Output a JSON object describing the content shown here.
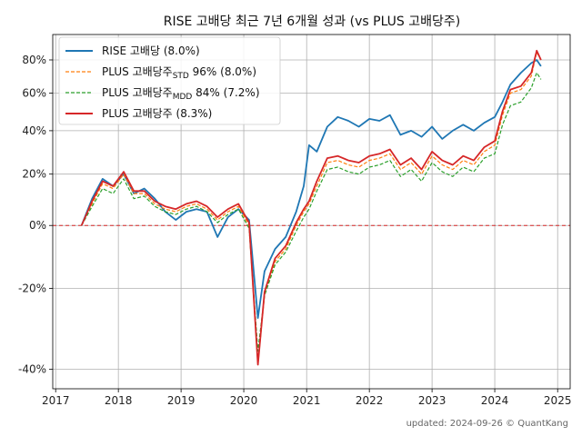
{
  "chart_data": {
    "type": "line",
    "title": "RISE 고배당 최근 7년 6개월 성과 (vs PLUS 고배당주)",
    "xlabel": "",
    "ylabel": "",
    "x_ticks": [
      "2017",
      "2018",
      "2019",
      "2020",
      "2021",
      "2022",
      "2023",
      "2024",
      "2025"
    ],
    "y_ticks": [
      "80%",
      "60%",
      "40%",
      "20%",
      "0%",
      "-20%",
      "-40%"
    ],
    "y_scale": "log(1+r)",
    "ylim": [
      -0.44,
      0.97
    ],
    "xlim": [
      "2016-12-15",
      "2025-03-15"
    ],
    "grid": true,
    "legend_position": "top-left",
    "reference_line": {
      "y": 0,
      "color": "#d62728",
      "style": "dashed"
    },
    "series": [
      {
        "name": "RISE 고배당 (8.0%)",
        "color": "#1f77b4",
        "style": "solid",
        "points": [
          [
            "2017-06-01",
            0.0
          ],
          [
            "2017-08-01",
            0.1
          ],
          [
            "2017-10-01",
            0.18
          ],
          [
            "2017-12-01",
            0.15
          ],
          [
            "2018-02-01",
            0.2
          ],
          [
            "2018-04-01",
            0.12
          ],
          [
            "2018-06-01",
            0.14
          ],
          [
            "2018-08-01",
            0.1
          ],
          [
            "2018-10-01",
            0.05
          ],
          [
            "2018-12-01",
            0.02
          ],
          [
            "2019-02-01",
            0.05
          ],
          [
            "2019-04-01",
            0.06
          ],
          [
            "2019-06-01",
            0.05
          ],
          [
            "2019-08-01",
            -0.04
          ],
          [
            "2019-10-01",
            0.03
          ],
          [
            "2019-12-01",
            0.06
          ],
          [
            "2020-02-01",
            0.02
          ],
          [
            "2020-03-23",
            -0.28
          ],
          [
            "2020-05-01",
            -0.15
          ],
          [
            "2020-07-01",
            -0.08
          ],
          [
            "2020-09-01",
            -0.04
          ],
          [
            "2020-11-01",
            0.05
          ],
          [
            "2020-12-15",
            0.15
          ],
          [
            "2021-01-15",
            0.33
          ],
          [
            "2021-03-01",
            0.3
          ],
          [
            "2021-05-01",
            0.42
          ],
          [
            "2021-07-01",
            0.47
          ],
          [
            "2021-09-01",
            0.45
          ],
          [
            "2021-11-01",
            0.42
          ],
          [
            "2022-01-01",
            0.46
          ],
          [
            "2022-03-01",
            0.45
          ],
          [
            "2022-05-01",
            0.48
          ],
          [
            "2022-07-01",
            0.38
          ],
          [
            "2022-09-01",
            0.4
          ],
          [
            "2022-11-01",
            0.37
          ],
          [
            "2023-01-01",
            0.42
          ],
          [
            "2023-03-01",
            0.36
          ],
          [
            "2023-05-01",
            0.4
          ],
          [
            "2023-07-01",
            0.43
          ],
          [
            "2023-09-01",
            0.4
          ],
          [
            "2023-11-01",
            0.44
          ],
          [
            "2024-01-01",
            0.47
          ],
          [
            "2024-02-15",
            0.55
          ],
          [
            "2024-04-01",
            0.65
          ],
          [
            "2024-06-01",
            0.72
          ],
          [
            "2024-08-01",
            0.78
          ],
          [
            "2024-09-01",
            0.8
          ],
          [
            "2024-09-26",
            0.76
          ]
        ]
      },
      {
        "name": "PLUS 고배당주",
        "label_sub": "STD",
        "label_tail": " 96% (8.0%)",
        "color": "#ff7f0e",
        "style": "dashed",
        "points": [
          [
            "2017-06-01",
            0.0
          ],
          [
            "2017-08-01",
            0.08
          ],
          [
            "2017-10-01",
            0.16
          ],
          [
            "2017-12-01",
            0.14
          ],
          [
            "2018-02-01",
            0.2
          ],
          [
            "2018-04-01",
            0.12
          ],
          [
            "2018-06-01",
            0.12
          ],
          [
            "2018-08-01",
            0.08
          ],
          [
            "2018-10-01",
            0.06
          ],
          [
            "2018-12-01",
            0.05
          ],
          [
            "2019-02-01",
            0.07
          ],
          [
            "2019-04-01",
            0.08
          ],
          [
            "2019-06-01",
            0.06
          ],
          [
            "2019-08-01",
            0.02
          ],
          [
            "2019-10-01",
            0.05
          ],
          [
            "2019-12-01",
            0.07
          ],
          [
            "2020-02-01",
            0.0
          ],
          [
            "2020-03-23",
            -0.39
          ],
          [
            "2020-05-01",
            -0.22
          ],
          [
            "2020-07-01",
            -0.12
          ],
          [
            "2020-09-01",
            -0.08
          ],
          [
            "2020-11-01",
            0.0
          ],
          [
            "2020-12-15",
            0.05
          ],
          [
            "2021-01-15",
            0.08
          ],
          [
            "2021-03-01",
            0.15
          ],
          [
            "2021-05-01",
            0.25
          ],
          [
            "2021-07-01",
            0.26
          ],
          [
            "2021-09-01",
            0.24
          ],
          [
            "2021-11-01",
            0.23
          ],
          [
            "2022-01-01",
            0.26
          ],
          [
            "2022-03-01",
            0.27
          ],
          [
            "2022-05-01",
            0.29
          ],
          [
            "2022-07-01",
            0.22
          ],
          [
            "2022-09-01",
            0.25
          ],
          [
            "2022-11-01",
            0.2
          ],
          [
            "2023-01-01",
            0.28
          ],
          [
            "2023-03-01",
            0.24
          ],
          [
            "2023-05-01",
            0.22
          ],
          [
            "2023-07-01",
            0.26
          ],
          [
            "2023-09-01",
            0.24
          ],
          [
            "2023-11-01",
            0.3
          ],
          [
            "2024-01-01",
            0.33
          ],
          [
            "2024-02-15",
            0.48
          ],
          [
            "2024-04-01",
            0.6
          ],
          [
            "2024-06-01",
            0.62
          ],
          [
            "2024-08-01",
            0.7
          ],
          [
            "2024-09-01",
            0.85
          ],
          [
            "2024-09-26",
            0.8
          ]
        ]
      },
      {
        "name": "PLUS 고배당주",
        "label_sub": "MDD",
        "label_tail": " 84% (7.2%)",
        "color": "#2ca02c",
        "style": "dashed",
        "points": [
          [
            "2017-06-01",
            0.0
          ],
          [
            "2017-08-01",
            0.07
          ],
          [
            "2017-10-01",
            0.14
          ],
          [
            "2017-12-01",
            0.12
          ],
          [
            "2018-02-01",
            0.18
          ],
          [
            "2018-04-01",
            0.1
          ],
          [
            "2018-06-01",
            0.11
          ],
          [
            "2018-08-01",
            0.07
          ],
          [
            "2018-10-01",
            0.05
          ],
          [
            "2018-12-01",
            0.04
          ],
          [
            "2019-02-01",
            0.06
          ],
          [
            "2019-04-01",
            0.07
          ],
          [
            "2019-06-01",
            0.05
          ],
          [
            "2019-08-01",
            0.01
          ],
          [
            "2019-10-01",
            0.04
          ],
          [
            "2019-12-01",
            0.06
          ],
          [
            "2020-02-01",
            -0.01
          ],
          [
            "2020-03-23",
            -0.36
          ],
          [
            "2020-05-01",
            -0.22
          ],
          [
            "2020-07-01",
            -0.13
          ],
          [
            "2020-09-01",
            -0.09
          ],
          [
            "2020-11-01",
            -0.02
          ],
          [
            "2020-12-15",
            0.03
          ],
          [
            "2021-01-15",
            0.06
          ],
          [
            "2021-03-01",
            0.13
          ],
          [
            "2021-05-01",
            0.22
          ],
          [
            "2021-07-01",
            0.23
          ],
          [
            "2021-09-01",
            0.21
          ],
          [
            "2021-11-01",
            0.2
          ],
          [
            "2022-01-01",
            0.23
          ],
          [
            "2022-03-01",
            0.24
          ],
          [
            "2022-05-01",
            0.26
          ],
          [
            "2022-07-01",
            0.19
          ],
          [
            "2022-09-01",
            0.22
          ],
          [
            "2022-11-01",
            0.17
          ],
          [
            "2023-01-01",
            0.25
          ],
          [
            "2023-03-01",
            0.21
          ],
          [
            "2023-05-01",
            0.19
          ],
          [
            "2023-07-01",
            0.23
          ],
          [
            "2023-09-01",
            0.21
          ],
          [
            "2023-11-01",
            0.27
          ],
          [
            "2024-01-01",
            0.29
          ],
          [
            "2024-02-15",
            0.43
          ],
          [
            "2024-04-01",
            0.53
          ],
          [
            "2024-06-01",
            0.55
          ],
          [
            "2024-08-01",
            0.63
          ],
          [
            "2024-09-01",
            0.72
          ],
          [
            "2024-09-26",
            0.68
          ]
        ]
      },
      {
        "name": "PLUS 고배당주 (8.3%)",
        "color": "#d62728",
        "style": "solid",
        "points": [
          [
            "2017-06-01",
            0.0
          ],
          [
            "2017-08-01",
            0.09
          ],
          [
            "2017-10-01",
            0.17
          ],
          [
            "2017-12-01",
            0.15
          ],
          [
            "2018-02-01",
            0.21
          ],
          [
            "2018-04-01",
            0.13
          ],
          [
            "2018-06-01",
            0.13
          ],
          [
            "2018-08-01",
            0.09
          ],
          [
            "2018-10-01",
            0.07
          ],
          [
            "2018-12-01",
            0.06
          ],
          [
            "2019-02-01",
            0.08
          ],
          [
            "2019-04-01",
            0.09
          ],
          [
            "2019-06-01",
            0.07
          ],
          [
            "2019-08-01",
            0.03
          ],
          [
            "2019-10-01",
            0.06
          ],
          [
            "2019-12-01",
            0.08
          ],
          [
            "2020-02-01",
            0.01
          ],
          [
            "2020-03-23",
            -0.39
          ],
          [
            "2020-05-01",
            -0.21
          ],
          [
            "2020-07-01",
            -0.11
          ],
          [
            "2020-09-01",
            -0.07
          ],
          [
            "2020-11-01",
            0.01
          ],
          [
            "2020-12-15",
            0.06
          ],
          [
            "2021-01-15",
            0.09
          ],
          [
            "2021-03-01",
            0.17
          ],
          [
            "2021-05-01",
            0.27
          ],
          [
            "2021-07-01",
            0.28
          ],
          [
            "2021-09-01",
            0.26
          ],
          [
            "2021-11-01",
            0.25
          ],
          [
            "2022-01-01",
            0.28
          ],
          [
            "2022-03-01",
            0.29
          ],
          [
            "2022-05-01",
            0.31
          ],
          [
            "2022-07-01",
            0.24
          ],
          [
            "2022-09-01",
            0.27
          ],
          [
            "2022-11-01",
            0.22
          ],
          [
            "2023-01-01",
            0.3
          ],
          [
            "2023-03-01",
            0.26
          ],
          [
            "2023-05-01",
            0.24
          ],
          [
            "2023-07-01",
            0.28
          ],
          [
            "2023-09-01",
            0.26
          ],
          [
            "2023-11-01",
            0.32
          ],
          [
            "2024-01-01",
            0.35
          ],
          [
            "2024-02-15",
            0.5
          ],
          [
            "2024-04-01",
            0.62
          ],
          [
            "2024-06-01",
            0.64
          ],
          [
            "2024-08-01",
            0.72
          ],
          [
            "2024-09-01",
            0.86
          ],
          [
            "2024-09-26",
            0.8
          ]
        ]
      }
    ]
  },
  "footer": {
    "updated": "updated: 2024-09-26 © QuantKang"
  }
}
